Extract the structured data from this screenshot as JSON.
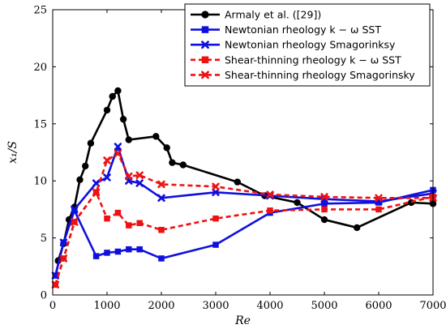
{
  "chart_data": {
    "type": "line",
    "xlabel": "Re",
    "ylabel": "x₁/S",
    "xlim": [
      0,
      7000
    ],
    "ylim": [
      0,
      25
    ],
    "x_ticks": [
      0,
      1000,
      2000,
      3000,
      4000,
      5000,
      6000,
      7000
    ],
    "y_ticks": [
      0,
      5,
      10,
      15,
      20,
      25
    ],
    "grid": false,
    "legend_position": "top-right",
    "series": [
      {
        "name": "Armaly et al. ([29])",
        "color": "#000000",
        "marker": "circle",
        "line_style": "solid",
        "x": [
          100,
          200,
          300,
          400,
          500,
          600,
          700,
          1000,
          1100,
          1200,
          1300,
          1400,
          1900,
          2100,
          2200,
          2400,
          3400,
          3900,
          4500,
          5000,
          5600,
          6600,
          7000
        ],
        "y": [
          3.0,
          4.5,
          6.6,
          7.7,
          10.1,
          11.3,
          13.3,
          16.2,
          17.4,
          17.9,
          15.4,
          13.6,
          13.9,
          12.9,
          11.6,
          11.4,
          9.9,
          8.7,
          8.1,
          6.6,
          5.9,
          8.1,
          8.0
        ]
      },
      {
        "name": "Newtonian rheology k − ω SST",
        "color": "#1010dd",
        "marker": "square",
        "line_style": "solid",
        "x": [
          50,
          200,
          400,
          800,
          1000,
          1200,
          1400,
          1600,
          2000,
          3000,
          4000,
          5000,
          6000,
          7000
        ],
        "y": [
          1.7,
          4.6,
          7.4,
          3.4,
          3.7,
          3.8,
          4.0,
          4.0,
          3.2,
          4.4,
          7.2,
          8.0,
          8.1,
          9.2
        ]
      },
      {
        "name": "Newtonian rheology Smagorinksy",
        "color": "#1010dd",
        "marker": "cross",
        "line_style": "solid",
        "x": [
          50,
          200,
          400,
          800,
          1000,
          1200,
          1400,
          1600,
          2000,
          3000,
          4000,
          5000,
          6000,
          7000
        ],
        "y": [
          1.7,
          4.6,
          7.5,
          9.8,
          10.3,
          13.0,
          10.0,
          9.8,
          8.5,
          9.0,
          8.7,
          8.4,
          8.2,
          8.9
        ]
      },
      {
        "name": "Shear-thinning rheology k − ω SST",
        "color": "#ee1111",
        "marker": "square",
        "line_style": "dashed",
        "x": [
          50,
          200,
          400,
          800,
          1000,
          1200,
          1400,
          1600,
          2000,
          3000,
          4000,
          5000,
          6000,
          7000
        ],
        "y": [
          0.9,
          3.2,
          6.4,
          9.0,
          6.7,
          7.2,
          6.1,
          6.3,
          5.7,
          6.7,
          7.4,
          7.5,
          7.5,
          8.6
        ]
      },
      {
        "name": "Shear-thinning rheology Smagorinsky",
        "color": "#ee1111",
        "marker": "cross",
        "line_style": "dashed",
        "x": [
          50,
          200,
          400,
          800,
          1000,
          1200,
          1400,
          1600,
          2000,
          3000,
          4000,
          5000,
          6000,
          7000
        ],
        "y": [
          0.9,
          3.2,
          6.4,
          9.0,
          11.8,
          12.4,
          10.4,
          10.5,
          9.7,
          9.5,
          8.8,
          8.6,
          8.5,
          8.5
        ]
      }
    ]
  }
}
